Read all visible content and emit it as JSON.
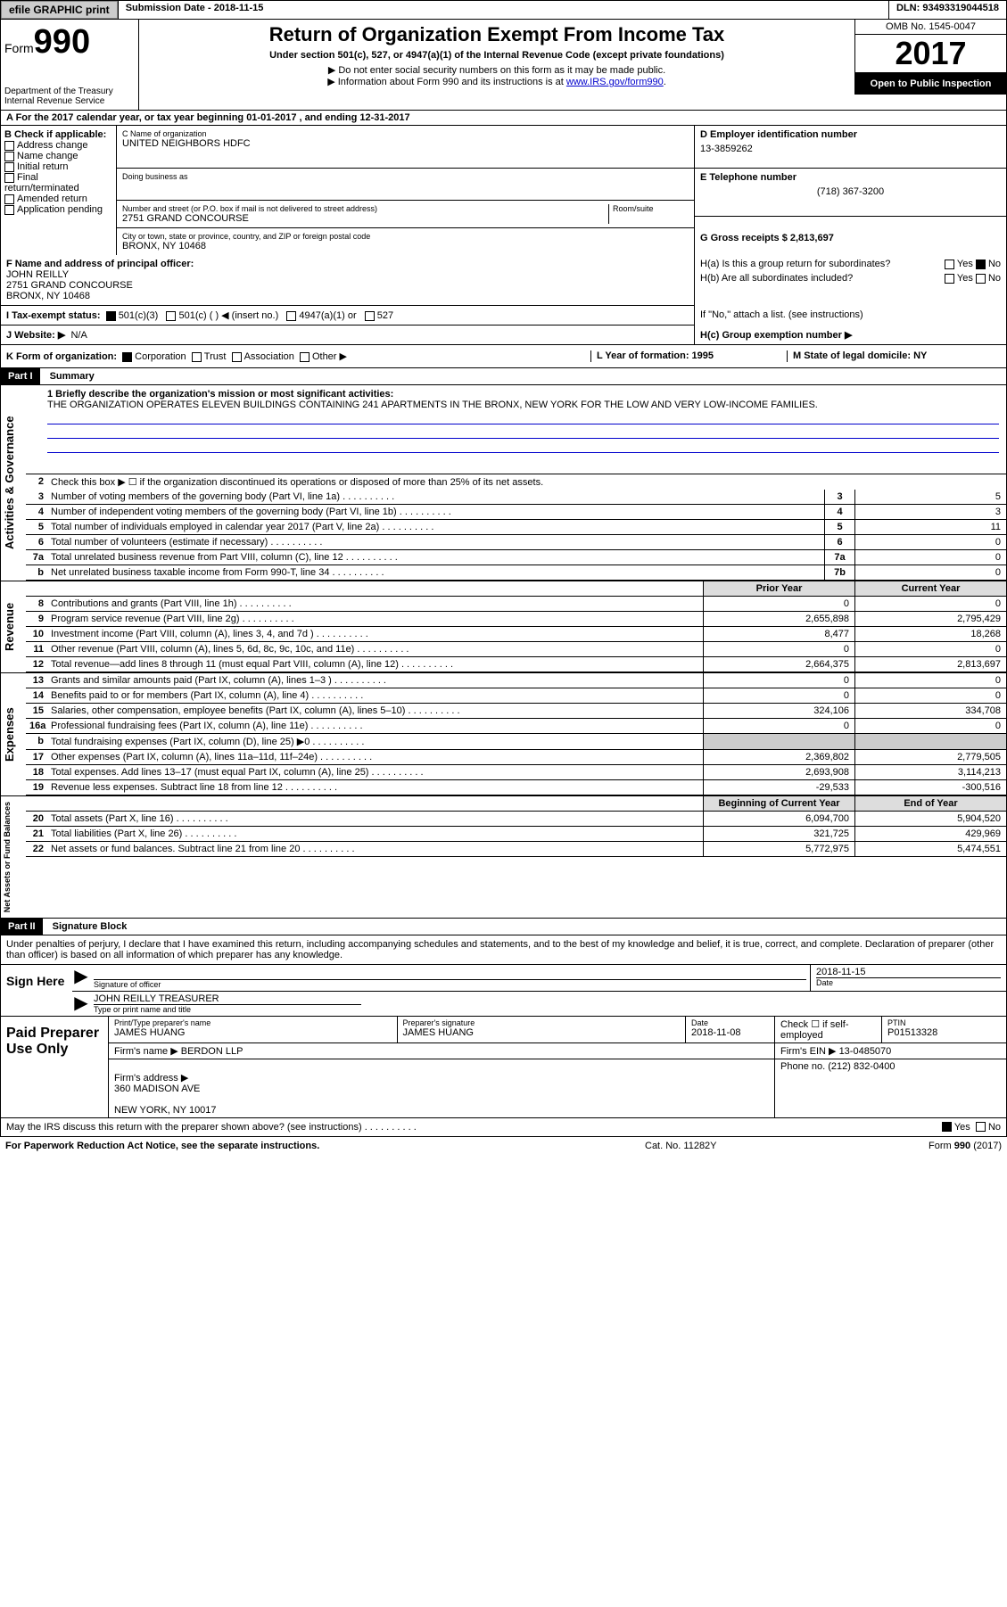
{
  "topbar": {
    "efile": "efile GRAPHIC print",
    "submission": "Submission Date - 2018-11-15",
    "dln": "DLN: 93493319044518"
  },
  "header": {
    "form_word": "Form",
    "form_num": "990",
    "dept": "Department of the Treasury\nInternal Revenue Service",
    "title": "Return of Organization Exempt From Income Tax",
    "subtitle": "Under section 501(c), 527, or 4947(a)(1) of the Internal Revenue Code (except private foundations)",
    "note1": "▶ Do not enter social security numbers on this form as it may be made public.",
    "note2_pre": "▶ Information about Form 990 and its instructions is at ",
    "note2_link": "www.IRS.gov/form990",
    "omb": "OMB No. 1545-0047",
    "year": "2017",
    "inspect": "Open to Public Inspection"
  },
  "a": "A  For the 2017 calendar year, or tax year beginning 01-01-2017   , and ending 12-31-2017",
  "b": {
    "label": "B Check if applicable:",
    "opts": [
      "Address change",
      "Name change",
      "Initial return",
      "Final return/terminated",
      "Amended return",
      "Application pending"
    ]
  },
  "c": {
    "name_lbl": "C Name of organization",
    "name": "UNITED NEIGHBORS HDFC",
    "dba_lbl": "Doing business as",
    "addr_lbl": "Number and street (or P.O. box if mail is not delivered to street address)",
    "room_lbl": "Room/suite",
    "addr": "2751 GRAND CONCOURSE",
    "city_lbl": "City or town, state or province, country, and ZIP or foreign postal code",
    "city": "BRONX, NY 10468"
  },
  "d": {
    "lbl": "D Employer identification number",
    "val": "13-3859262"
  },
  "e": {
    "lbl": "E Telephone number",
    "val": "(718) 367-3200"
  },
  "g": {
    "lbl": "G Gross receipts $ 2,813,697"
  },
  "f": {
    "lbl": "F  Name and address of principal officer:",
    "name": "JOHN REILLY",
    "addr": "2751 GRAND CONCOURSE\nBRONX, NY  10468"
  },
  "h": {
    "a": "H(a)  Is this a group return for subordinates?",
    "b": "H(b)  Are all subordinates included?",
    "note": "If \"No,\" attach a list. (see instructions)",
    "c": "H(c)  Group exemption number ▶"
  },
  "i": {
    "lbl": "I  Tax-exempt status:",
    "o1": "501(c)(3)",
    "o2": "501(c) (  ) ◀ (insert no.)",
    "o3": "4947(a)(1) or",
    "o4": "527"
  },
  "j": {
    "lbl": "J  Website: ▶",
    "val": "N/A"
  },
  "k": {
    "lbl": "K Form of organization:",
    "opts": [
      "Corporation",
      "Trust",
      "Association",
      "Other ▶"
    ]
  },
  "l": "L Year of formation: 1995",
  "m": "M State of legal domicile: NY",
  "part1": {
    "hdr": "Part I",
    "title": "Summary",
    "q1": "1  Briefly describe the organization's mission or most significant activities:",
    "mission": "THE ORGANIZATION OPERATES ELEVEN BUILDINGS CONTAINING 241 APARTMENTS IN THE BRONX, NEW YORK FOR THE LOW AND VERY LOW-INCOME FAMILIES.",
    "q2": "Check this box ▶ ☐  if the organization discontinued its operations or disposed of more than 25% of its net assets.",
    "vl_gov": "Activities & Governance",
    "vl_rev": "Revenue",
    "vl_exp": "Expenses",
    "vl_net": "Net Assets or Fund Balances",
    "py": "Prior Year",
    "cy": "Current Year",
    "bcy": "Beginning of Current Year",
    "eoy": "End of Year",
    "lines_a": [
      {
        "n": "3",
        "t": "Number of voting members of the governing body (Part VI, line 1a)",
        "b": "3",
        "v": "5"
      },
      {
        "n": "4",
        "t": "Number of independent voting members of the governing body (Part VI, line 1b)",
        "b": "4",
        "v": "3"
      },
      {
        "n": "5",
        "t": "Total number of individuals employed in calendar year 2017 (Part V, line 2a)",
        "b": "5",
        "v": "11"
      },
      {
        "n": "6",
        "t": "Total number of volunteers (estimate if necessary)",
        "b": "6",
        "v": "0"
      },
      {
        "n": "7a",
        "t": "Total unrelated business revenue from Part VIII, column (C), line 12",
        "b": "7a",
        "v": "0"
      },
      {
        "n": "b",
        "t": "Net unrelated business taxable income from Form 990-T, line 34",
        "b": "7b",
        "v": "0"
      }
    ],
    "lines_r": [
      {
        "n": "8",
        "t": "Contributions and grants (Part VIII, line 1h)",
        "p": "0",
        "c": "0"
      },
      {
        "n": "9",
        "t": "Program service revenue (Part VIII, line 2g)",
        "p": "2,655,898",
        "c": "2,795,429"
      },
      {
        "n": "10",
        "t": "Investment income (Part VIII, column (A), lines 3, 4, and 7d )",
        "p": "8,477",
        "c": "18,268"
      },
      {
        "n": "11",
        "t": "Other revenue (Part VIII, column (A), lines 5, 6d, 8c, 9c, 10c, and 11e)",
        "p": "0",
        "c": "0"
      },
      {
        "n": "12",
        "t": "Total revenue—add lines 8 through 11 (must equal Part VIII, column (A), line 12)",
        "p": "2,664,375",
        "c": "2,813,697"
      }
    ],
    "lines_e": [
      {
        "n": "13",
        "t": "Grants and similar amounts paid (Part IX, column (A), lines 1–3 )",
        "p": "0",
        "c": "0"
      },
      {
        "n": "14",
        "t": "Benefits paid to or for members (Part IX, column (A), line 4)",
        "p": "0",
        "c": "0"
      },
      {
        "n": "15",
        "t": "Salaries, other compensation, employee benefits (Part IX, column (A), lines 5–10)",
        "p": "324,106",
        "c": "334,708"
      },
      {
        "n": "16a",
        "t": "Professional fundraising fees (Part IX, column (A), line 11e)",
        "p": "0",
        "c": "0"
      },
      {
        "n": "b",
        "t": "Total fundraising expenses (Part IX, column (D), line 25) ▶0",
        "p": "",
        "c": "",
        "shaded": true
      },
      {
        "n": "17",
        "t": "Other expenses (Part IX, column (A), lines 11a–11d, 11f–24e)",
        "p": "2,369,802",
        "c": "2,779,505"
      },
      {
        "n": "18",
        "t": "Total expenses. Add lines 13–17 (must equal Part IX, column (A), line 25)",
        "p": "2,693,908",
        "c": "3,114,213"
      },
      {
        "n": "19",
        "t": "Revenue less expenses. Subtract line 18 from line 12",
        "p": "-29,533",
        "c": "-300,516"
      }
    ],
    "lines_n": [
      {
        "n": "20",
        "t": "Total assets (Part X, line 16)",
        "p": "6,094,700",
        "c": "5,904,520"
      },
      {
        "n": "21",
        "t": "Total liabilities (Part X, line 26)",
        "p": "321,725",
        "c": "429,969"
      },
      {
        "n": "22",
        "t": "Net assets or fund balances. Subtract line 21 from line 20",
        "p": "5,772,975",
        "c": "5,474,551"
      }
    ]
  },
  "part2": {
    "hdr": "Part II",
    "title": "Signature Block",
    "intro": "Under penalties of perjury, I declare that I have examined this return, including accompanying schedules and statements, and to the best of my knowledge and belief, it is true, correct, and complete. Declaration of preparer (other than officer) is based on all information of which preparer has any knowledge.",
    "sign_here": "Sign Here",
    "sig_lbl": "Signature of officer",
    "date_lbl": "Date",
    "sig_date": "2018-11-15",
    "sig_name": "JOHN REILLY TREASURER",
    "sig_name_lbl": "Type or print name and title",
    "paid": "Paid Preparer Use Only",
    "prep_name_lbl": "Print/Type preparer's name",
    "prep_name": "JAMES HUANG",
    "prep_sig_lbl": "Preparer's signature",
    "prep_sig": "JAMES HUANG",
    "prep_date": "2018-11-08",
    "prep_check": "Check ☐ if self-employed",
    "ptin_lbl": "PTIN",
    "ptin": "P01513328",
    "firm_name_lbl": "Firm's name     ▶",
    "firm_name": "BERDON LLP",
    "firm_ein_lbl": "Firm's EIN ▶",
    "firm_ein": "13-0485070",
    "firm_addr_lbl": "Firm's address ▶",
    "firm_addr": "360 MADISON AVE\n\nNEW YORK, NY  10017",
    "firm_phone_lbl": "Phone no.",
    "firm_phone": "(212) 832-0400",
    "discuss": "May the IRS discuss this return with the preparer shown above? (see instructions)",
    "yes": "Yes",
    "no": "No"
  },
  "footer": {
    "l": "For Paperwork Reduction Act Notice, see the separate instructions.",
    "m": "Cat. No. 11282Y",
    "r": "Form 990 (2017)"
  }
}
